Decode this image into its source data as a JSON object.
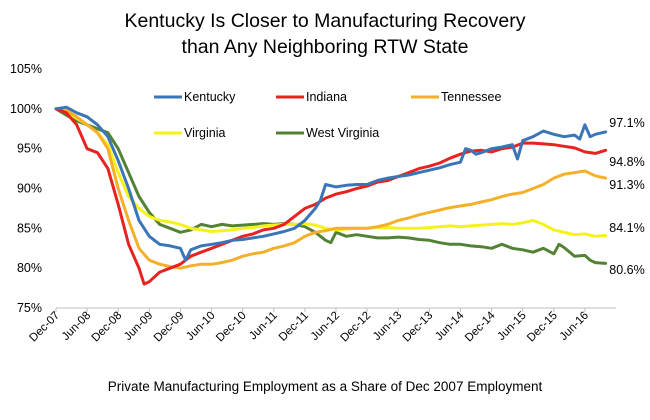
{
  "chart_data": {
    "type": "line",
    "title": "Kentucky Is Closer to Manufacturing Recovery than Any Neighboring RTW State",
    "title_lines": [
      "Kentucky Is Closer to Manufacturing Recovery",
      "than Any Neighboring RTW State"
    ],
    "subtitle": "Private Manufacturing Employment as a Share of Dec 2007 Employment",
    "xlabel": "",
    "ylabel": "",
    "ylim": [
      75,
      105
    ],
    "y_ticks": [
      75,
      80,
      85,
      90,
      95,
      100,
      105
    ],
    "y_tick_labels": [
      "75%",
      "80%",
      "85%",
      "90%",
      "95%",
      "100%",
      "105%"
    ],
    "x_ticks": [
      0,
      6,
      12,
      18,
      24,
      30,
      36,
      42,
      48,
      54,
      60,
      66,
      72,
      78,
      84,
      90,
      96,
      102
    ],
    "x_tick_labels": [
      "Dec-07",
      "Jun-08",
      "Dec-08",
      "Jun-09",
      "Dec-09",
      "Jun-10",
      "Dec-10",
      "Jun-11",
      "Dec-11",
      "Jun-12",
      "Dec-12",
      "Jun-13",
      "Dec-13",
      "Jun-14",
      "Dec-14",
      "Jun-15",
      "Dec-15",
      "Jun-16"
    ],
    "x_unit": "months since Dec-07",
    "grid": false,
    "legend": "top (inside plot)",
    "series": [
      {
        "name": "Kentucky",
        "color": "#3a75b8",
        "end_label": "97.1%",
        "points": [
          [
            0,
            100
          ],
          [
            2,
            100.2
          ],
          [
            4,
            99.5
          ],
          [
            6,
            99
          ],
          [
            8,
            98
          ],
          [
            10,
            96.5
          ],
          [
            12,
            93.5
          ],
          [
            14,
            90
          ],
          [
            16,
            86
          ],
          [
            18,
            84
          ],
          [
            20,
            83
          ],
          [
            22,
            82.8
          ],
          [
            24,
            82.5
          ],
          [
            25,
            81
          ],
          [
            26,
            82.3
          ],
          [
            28,
            82.8
          ],
          [
            30,
            83
          ],
          [
            32,
            83.2
          ],
          [
            34,
            83.5
          ],
          [
            36,
            83.6
          ],
          [
            38,
            83.8
          ],
          [
            40,
            84
          ],
          [
            42,
            84.3
          ],
          [
            44,
            84.6
          ],
          [
            46,
            85
          ],
          [
            48,
            86
          ],
          [
            50,
            87.5
          ],
          [
            51,
            88.5
          ],
          [
            52,
            90.5
          ],
          [
            54,
            90.2
          ],
          [
            56,
            90.4
          ],
          [
            58,
            90.5
          ],
          [
            60,
            90.5
          ],
          [
            62,
            91
          ],
          [
            64,
            91.3
          ],
          [
            66,
            91.5
          ],
          [
            68,
            91.7
          ],
          [
            70,
            92
          ],
          [
            72,
            92.3
          ],
          [
            74,
            92.6
          ],
          [
            76,
            93
          ],
          [
            78,
            93.3
          ],
          [
            79,
            95
          ],
          [
            80,
            94.8
          ],
          [
            81,
            94.3
          ],
          [
            82,
            94.5
          ],
          [
            84,
            95
          ],
          [
            86,
            95.2
          ],
          [
            88,
            95.5
          ],
          [
            89,
            93.7
          ],
          [
            90,
            96
          ],
          [
            92,
            96.5
          ],
          [
            94,
            97.2
          ],
          [
            96,
            96.8
          ],
          [
            98,
            96.5
          ],
          [
            100,
            96.7
          ],
          [
            101,
            96.2
          ],
          [
            102,
            98
          ],
          [
            103,
            96.5
          ],
          [
            104,
            96.8
          ],
          [
            106,
            97.1
          ]
        ]
      },
      {
        "name": "Indiana",
        "color": "#e8231f",
        "end_label": "94.8%",
        "points": [
          [
            0,
            100
          ],
          [
            2,
            99.5
          ],
          [
            4,
            98
          ],
          [
            6,
            95
          ],
          [
            8,
            94.5
          ],
          [
            10,
            92.5
          ],
          [
            12,
            88
          ],
          [
            14,
            83
          ],
          [
            16,
            80
          ],
          [
            17,
            78
          ],
          [
            18,
            78.3
          ],
          [
            20,
            79.5
          ],
          [
            22,
            80
          ],
          [
            24,
            80.5
          ],
          [
            26,
            81.5
          ],
          [
            28,
            82
          ],
          [
            30,
            82.5
          ],
          [
            32,
            83
          ],
          [
            34,
            83.5
          ],
          [
            36,
            84
          ],
          [
            38,
            84.3
          ],
          [
            40,
            84.8
          ],
          [
            42,
            85
          ],
          [
            44,
            85.5
          ],
          [
            46,
            86.5
          ],
          [
            48,
            87.5
          ],
          [
            50,
            88
          ],
          [
            52,
            88.8
          ],
          [
            54,
            89.3
          ],
          [
            56,
            89.6
          ],
          [
            58,
            90
          ],
          [
            60,
            90.3
          ],
          [
            62,
            90.8
          ],
          [
            64,
            91
          ],
          [
            66,
            91.5
          ],
          [
            68,
            92
          ],
          [
            70,
            92.5
          ],
          [
            72,
            92.8
          ],
          [
            74,
            93.2
          ],
          [
            76,
            93.8
          ],
          [
            78,
            94.3
          ],
          [
            80,
            94.7
          ],
          [
            82,
            94.8
          ],
          [
            84,
            94.6
          ],
          [
            86,
            95
          ],
          [
            88,
            95.2
          ],
          [
            90,
            95.7
          ],
          [
            92,
            95.7
          ],
          [
            94,
            95.6
          ],
          [
            96,
            95.5
          ],
          [
            98,
            95.3
          ],
          [
            100,
            95.1
          ],
          [
            102,
            94.6
          ],
          [
            104,
            94.4
          ],
          [
            106,
            94.8
          ]
        ]
      },
      {
        "name": "Tennessee",
        "color": "#f4b02a",
        "end_label": "91.3%",
        "points": [
          [
            0,
            100
          ],
          [
            2,
            99.8
          ],
          [
            4,
            99
          ],
          [
            6,
            98
          ],
          [
            8,
            97
          ],
          [
            10,
            95
          ],
          [
            12,
            90
          ],
          [
            14,
            86
          ],
          [
            16,
            82.5
          ],
          [
            18,
            81
          ],
          [
            20,
            80.5
          ],
          [
            22,
            80.2
          ],
          [
            24,
            80
          ],
          [
            26,
            80.3
          ],
          [
            28,
            80.5
          ],
          [
            30,
            80.5
          ],
          [
            32,
            80.7
          ],
          [
            34,
            81
          ],
          [
            36,
            81.5
          ],
          [
            38,
            81.8
          ],
          [
            40,
            82
          ],
          [
            42,
            82.5
          ],
          [
            44,
            82.8
          ],
          [
            46,
            83.2
          ],
          [
            48,
            84
          ],
          [
            50,
            84.5
          ],
          [
            52,
            84.7
          ],
          [
            54,
            85
          ],
          [
            56,
            85
          ],
          [
            58,
            85
          ],
          [
            60,
            85
          ],
          [
            62,
            85.2
          ],
          [
            64,
            85.5
          ],
          [
            66,
            86
          ],
          [
            68,
            86.3
          ],
          [
            70,
            86.7
          ],
          [
            72,
            87
          ],
          [
            74,
            87.3
          ],
          [
            76,
            87.6
          ],
          [
            78,
            87.8
          ],
          [
            80,
            88
          ],
          [
            82,
            88.3
          ],
          [
            84,
            88.6
          ],
          [
            86,
            89
          ],
          [
            88,
            89.3
          ],
          [
            90,
            89.5
          ],
          [
            92,
            90
          ],
          [
            94,
            90.5
          ],
          [
            96,
            91.3
          ],
          [
            98,
            91.8
          ],
          [
            100,
            92
          ],
          [
            102,
            92.2
          ],
          [
            104,
            91.6
          ],
          [
            106,
            91.3
          ]
        ]
      },
      {
        "name": "Virginia",
        "color": "#f5f219",
        "end_label": "84.1%",
        "points": [
          [
            0,
            100
          ],
          [
            2,
            99.6
          ],
          [
            4,
            98.8
          ],
          [
            6,
            98
          ],
          [
            8,
            97
          ],
          [
            10,
            95.5
          ],
          [
            12,
            92
          ],
          [
            14,
            89
          ],
          [
            16,
            87.5
          ],
          [
            18,
            86.5
          ],
          [
            20,
            86
          ],
          [
            22,
            85.8
          ],
          [
            24,
            85.5
          ],
          [
            26,
            85
          ],
          [
            28,
            84.8
          ],
          [
            30,
            84.6
          ],
          [
            32,
            84.7
          ],
          [
            34,
            84.8
          ],
          [
            36,
            85
          ],
          [
            38,
            85.1
          ],
          [
            40,
            85.3
          ],
          [
            42,
            85.4
          ],
          [
            44,
            85.5
          ],
          [
            46,
            85.5
          ],
          [
            48,
            85.6
          ],
          [
            50,
            85.4
          ],
          [
            52,
            85
          ],
          [
            54,
            84.8
          ],
          [
            56,
            84.9
          ],
          [
            58,
            85
          ],
          [
            60,
            85
          ],
          [
            62,
            85.1
          ],
          [
            64,
            85.1
          ],
          [
            66,
            85
          ],
          [
            68,
            85
          ],
          [
            70,
            85
          ],
          [
            72,
            85.1
          ],
          [
            74,
            85.2
          ],
          [
            76,
            85.3
          ],
          [
            78,
            85.2
          ],
          [
            80,
            85.3
          ],
          [
            82,
            85.4
          ],
          [
            84,
            85.5
          ],
          [
            86,
            85.6
          ],
          [
            88,
            85.5
          ],
          [
            90,
            85.7
          ],
          [
            92,
            86
          ],
          [
            94,
            85.5
          ],
          [
            96,
            84.8
          ],
          [
            98,
            84.5
          ],
          [
            100,
            84.2
          ],
          [
            102,
            84.3
          ],
          [
            104,
            84
          ],
          [
            106,
            84.1
          ]
        ]
      },
      {
        "name": "West Virginia",
        "color": "#548235",
        "end_label": "80.6%",
        "points": [
          [
            0,
            100
          ],
          [
            2,
            99.2
          ],
          [
            4,
            98.5
          ],
          [
            6,
            98
          ],
          [
            8,
            97.5
          ],
          [
            10,
            97
          ],
          [
            12,
            95
          ],
          [
            14,
            92
          ],
          [
            16,
            89
          ],
          [
            18,
            87
          ],
          [
            20,
            85.5
          ],
          [
            22,
            85
          ],
          [
            24,
            84.5
          ],
          [
            26,
            84.8
          ],
          [
            28,
            85.5
          ],
          [
            30,
            85.2
          ],
          [
            32,
            85.5
          ],
          [
            34,
            85.3
          ],
          [
            36,
            85.4
          ],
          [
            38,
            85.5
          ],
          [
            40,
            85.6
          ],
          [
            42,
            85.5
          ],
          [
            44,
            85.6
          ],
          [
            46,
            85.5
          ],
          [
            48,
            85.2
          ],
          [
            50,
            84.5
          ],
          [
            52,
            83.5
          ],
          [
            53,
            83.2
          ],
          [
            54,
            84.5
          ],
          [
            56,
            84
          ],
          [
            58,
            84.2
          ],
          [
            60,
            84
          ],
          [
            62,
            83.8
          ],
          [
            64,
            83.8
          ],
          [
            66,
            83.9
          ],
          [
            68,
            83.8
          ],
          [
            70,
            83.6
          ],
          [
            72,
            83.5
          ],
          [
            74,
            83.2
          ],
          [
            76,
            83
          ],
          [
            78,
            83
          ],
          [
            80,
            82.8
          ],
          [
            82,
            82.7
          ],
          [
            84,
            82.5
          ],
          [
            86,
            83
          ],
          [
            88,
            82.5
          ],
          [
            90,
            82.3
          ],
          [
            92,
            82
          ],
          [
            94,
            82.5
          ],
          [
            96,
            81.8
          ],
          [
            97,
            83
          ],
          [
            98,
            82.6
          ],
          [
            100,
            81.5
          ],
          [
            102,
            81.6
          ],
          [
            103,
            81
          ],
          [
            104,
            80.7
          ],
          [
            106,
            80.6
          ]
        ]
      }
    ]
  }
}
